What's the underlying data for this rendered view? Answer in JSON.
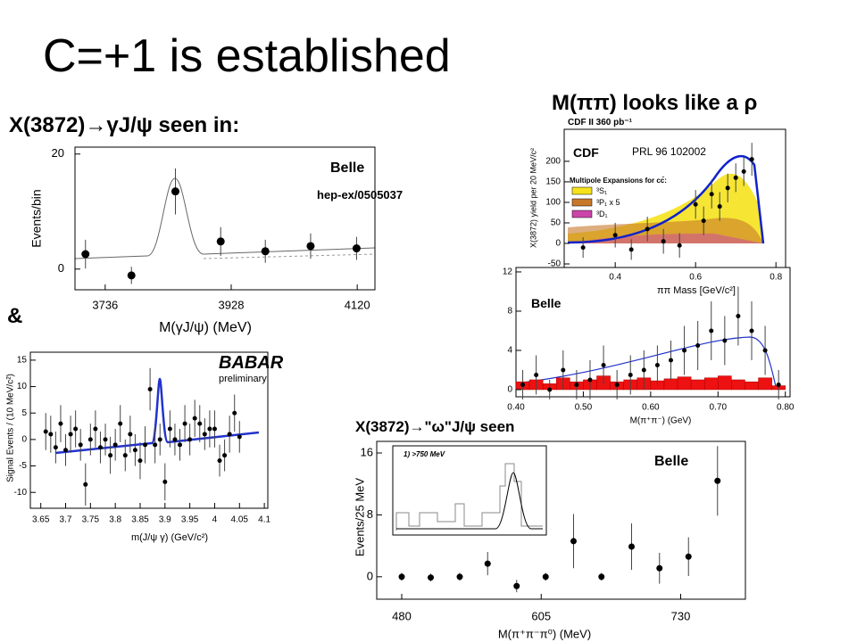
{
  "title": "C=+1 is established",
  "left_heading": "X(3872)→γJ/ψ seen in:",
  "right_heading": "M(ππ) looks like a ρ",
  "ampersand": "&",
  "omega_heading": "X(3872)→\"ω\"J/ψ seen",
  "plots": [
    {
      "notes": [
        "Belle",
        "hep-ex/0505037"
      ],
      "x_label": "M(γJ/ψ) (MeV)",
      "y_label": "Events/bin",
      "xlim": [
        3690,
        4147
      ],
      "ylim": [
        -3.6,
        21.2
      ],
      "xticks": [
        3736,
        3928,
        4120
      ],
      "yticks": [
        0,
        20
      ],
      "x": [
        3706,
        3776,
        3843,
        3912,
        3980,
        4049,
        4119
      ],
      "y": [
        2.6,
        -1.1,
        13.5,
        4.8,
        3.1,
        4.0,
        3.6
      ],
      "errors": [
        2.5,
        1.5,
        4,
        2.5,
        2,
        2.2,
        2
      ]
    },
    {
      "notes": [
        "BABAR",
        "preliminary"
      ],
      "x_label": "m(J/ψ γ) (GeV/c²)",
      "y_label": "Signal Events / (10 MeV/c²)",
      "xlim": [
        3.629,
        4.107
      ],
      "ylim": [
        -13,
        16.5
      ],
      "xticks": [
        3.65,
        3.7,
        3.75,
        3.8,
        3.85,
        3.9,
        3.95,
        4,
        4.05,
        4.1
      ],
      "yticks": [
        -10,
        -5,
        0,
        5,
        10,
        15
      ],
      "x": [
        3.66,
        3.67,
        3.68,
        3.69,
        3.7,
        3.71,
        3.72,
        3.73,
        3.74,
        3.75,
        3.76,
        3.77,
        3.78,
        3.79,
        3.8,
        3.81,
        3.82,
        3.83,
        3.84,
        3.85,
        3.86,
        3.87,
        3.88,
        3.89,
        3.9,
        3.91,
        3.92,
        3.93,
        3.94,
        3.95,
        3.96,
        3.97,
        3.98,
        3.99,
        4.0,
        4.01,
        4.02,
        4.03,
        4.04,
        4.05
      ],
      "y": [
        1.5,
        1,
        -1.5,
        3,
        -2,
        1,
        2,
        -1,
        -8.5,
        0,
        2,
        -1.5,
        0,
        -3,
        -1,
        3,
        -3,
        1,
        -2,
        -4,
        -1,
        9.5,
        -1,
        0,
        -8,
        2,
        0,
        -1,
        3,
        0,
        4,
        3,
        1,
        2,
        2,
        -4,
        -3,
        1,
        5,
        0.5
      ],
      "errors": [
        3.5,
        3.5,
        3,
        3.5,
        3,
        3.5,
        3.5,
        3,
        4,
        3,
        3.5,
        3,
        3,
        3.5,
        3,
        3.5,
        3,
        3.5,
        3,
        3.5,
        3.5,
        4,
        3.5,
        3,
        3.5,
        3.5,
        3,
        3,
        3.5,
        3,
        3.5,
        3.5,
        3,
        3.5,
        3.5,
        3,
        3,
        3.5,
        3.5,
        3
      ]
    },
    {
      "notes": [
        "CDF II   360 pb⁻¹",
        "CDF",
        "PRL 96 102002",
        "Multipole Expansions for cc̄:",
        "³S₁",
        "³P₁ x 5",
        "³D₁"
      ],
      "x_label": "ππ Mass [GeV/c²]",
      "y_label": "X(3872) yield per 20 MeV/c²",
      "xlim": [
        0.273,
        0.824
      ],
      "ylim": [
        -58.7,
        278
      ],
      "xticks": [
        0.4,
        0.6,
        0.8
      ],
      "yticks": [
        -50,
        0,
        50,
        100,
        150,
        200
      ],
      "x": [
        0.32,
        0.4,
        0.44,
        0.48,
        0.52,
        0.56,
        0.6,
        0.62,
        0.64,
        0.66,
        0.68,
        0.7,
        0.72,
        0.74
      ],
      "y": [
        -10,
        20,
        -15,
        35,
        5,
        -5,
        95,
        55,
        120,
        90,
        135,
        160,
        175,
        205
      ],
      "errors": [
        25,
        30,
        25,
        30,
        30,
        30,
        35,
        35,
        35,
        35,
        35,
        35,
        35,
        40
      ]
    },
    {
      "notes": [
        "Belle"
      ],
      "x_label": "M(π⁺π⁻) (GeV)",
      "xlim": [
        0.4,
        0.807
      ],
      "ylim": [
        -0.73,
        12.45
      ],
      "xticks": [
        {
          "value": 0.4,
          "label": "0.40"
        },
        {
          "value": 0.5,
          "label": "0.50"
        },
        {
          "value": 0.6,
          "label": "0.60"
        },
        {
          "value": 0.7,
          "label": "0.70"
        },
        {
          "value": 0.8,
          "label": "0.80"
        }
      ],
      "yticks": [
        0,
        4,
        8,
        12
      ],
      "x": [
        0.41,
        0.43,
        0.45,
        0.47,
        0.49,
        0.51,
        0.53,
        0.55,
        0.57,
        0.59,
        0.61,
        0.63,
        0.65,
        0.67,
        0.69,
        0.71,
        0.73,
        0.75,
        0.77,
        0.79
      ],
      "y": [
        0.5,
        1.5,
        0,
        2,
        0.5,
        1,
        2.5,
        0.5,
        1.5,
        2,
        2.5,
        3,
        4,
        4.5,
        6,
        5,
        7.5,
        6,
        4,
        0.5
      ],
      "errors": [
        1.5,
        2,
        1,
        2,
        1.5,
        2,
        2,
        1.5,
        2,
        2,
        2,
        2,
        2.5,
        2.5,
        3,
        2.5,
        3,
        3,
        2.5,
        1.5
      ],
      "bins": [
        0.4,
        0.42,
        0.44,
        0.46,
        0.48,
        0.5,
        0.52,
        0.54,
        0.56,
        0.58,
        0.6,
        0.62,
        0.64,
        0.66,
        0.68,
        0.7,
        0.72,
        0.74,
        0.76,
        0.78,
        0.8
      ],
      "counts": [
        0.8,
        1,
        0.6,
        1.2,
        0.8,
        1,
        1.4,
        0.8,
        1,
        1.2,
        0.9,
        1.1,
        1.3,
        1,
        1.2,
        1.4,
        1,
        0.8,
        1.2,
        0.4
      ]
    },
    {
      "notes": [
        "Belle",
        "1) >750 MeV"
      ],
      "x_label": "M(π⁺π⁻π⁰) (MeV)",
      "y_label": "Events/25 MeV",
      "xlim": [
        457.6,
        788
      ],
      "ylim": [
        -2.9,
        17.5
      ],
      "xticks": [
        480,
        605,
        730
      ],
      "yticks": [
        0,
        8,
        16
      ],
      "x": [
        480,
        506,
        532,
        557,
        583,
        609,
        634,
        659,
        686,
        711,
        737,
        763
      ],
      "y": [
        0,
        -0.1,
        0,
        1.7,
        -1.2,
        0,
        4.6,
        0,
        3.9,
        1.1,
        2.6,
        12.4
      ],
      "errors": [
        0.5,
        0.5,
        0.5,
        1.5,
        0.8,
        0.5,
        3.5,
        0.5,
        3,
        2,
        2.5,
        4.5
      ]
    }
  ]
}
